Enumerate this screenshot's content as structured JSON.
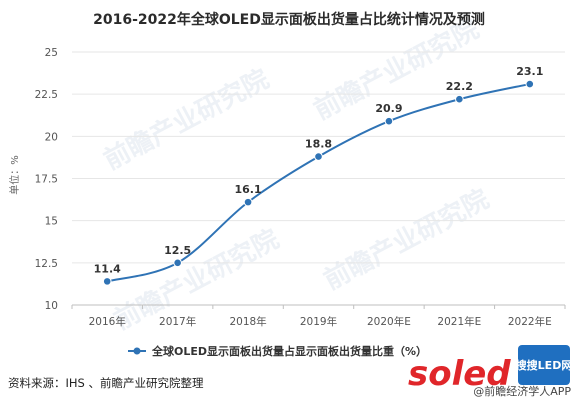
{
  "chart_data": {
    "type": "line",
    "title": "2016-2022年全球OLED显示面板出货量占比统计情况及预测",
    "ylabel": "单位：%",
    "xlabel": "",
    "categories": [
      "2016年",
      "2017年",
      "2018年",
      "2019年",
      "2020年E",
      "2021年E",
      "2022年E"
    ],
    "series": [
      {
        "name": "全球OLED显示面板出货量占显示面板出货量比重（%）",
        "values": [
          11.4,
          12.5,
          16.1,
          18.8,
          20.9,
          22.2,
          23.1
        ],
        "color": "#2f73b5"
      }
    ],
    "ylim": [
      10,
      25
    ],
    "yticks": [
      "10",
      "12.5",
      "15",
      "17.5",
      "20",
      "22.5",
      "25"
    ],
    "grid": true,
    "legend_position": "bottom-center"
  },
  "source": "资料来源：IHS 、前瞻产业研究院整理",
  "watermark": {
    "logo_text": "soled",
    "badge_text": "搜搜LED网",
    "attribution": "@前瞻经济学人APP"
  }
}
